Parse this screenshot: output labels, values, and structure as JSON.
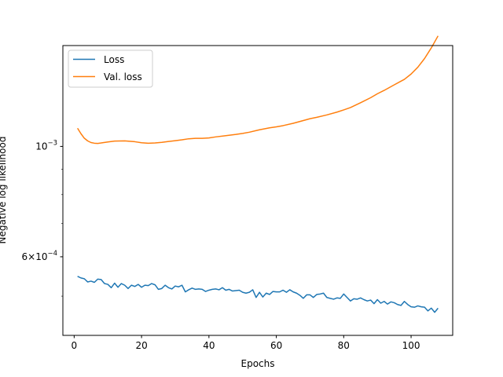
{
  "chart_data": {
    "type": "line",
    "title": "",
    "xlabel": "Epochs",
    "ylabel": "Negative log likelihood",
    "yscale": "log",
    "xlim": [
      -3.35,
      112.35
    ],
    "ylim": [
      0.000417,
      0.001595
    ],
    "xticks": [
      0,
      20,
      40,
      60,
      80,
      100
    ],
    "xtick_labels": [
      "0",
      "20",
      "40",
      "60",
      "80",
      "100"
    ],
    "yticks": [
      0.001,
      0.0006
    ],
    "ytick_labels": [
      {
        "base": "10",
        "exp": "−3"
      },
      {
        "base": "6×10",
        "exp": "−4"
      }
    ],
    "grid": false,
    "legend_position": "top-left",
    "series": [
      {
        "name": "Loss",
        "color": "#1f77b4",
        "x": [
          1,
          2,
          3,
          4,
          5,
          6,
          7,
          8,
          9,
          10,
          11,
          12,
          13,
          14,
          15,
          16,
          17,
          18,
          19,
          20,
          21,
          22,
          23,
          24,
          25,
          26,
          27,
          28,
          29,
          30,
          31,
          32,
          33,
          34,
          35,
          36,
          37,
          38,
          39,
          40,
          41,
          42,
          43,
          44,
          45,
          46,
          47,
          48,
          49,
          50,
          51,
          52,
          53,
          54,
          55,
          56,
          57,
          58,
          59,
          60,
          61,
          62,
          63,
          64,
          65,
          66,
          67,
          68,
          69,
          70,
          71,
          72,
          73,
          74,
          75,
          76,
          77,
          78,
          79,
          80,
          81,
          82,
          83,
          84,
          85,
          86,
          87,
          88,
          89,
          90,
          91,
          92,
          93,
          94,
          95,
          96,
          97,
          98,
          99,
          100,
          101,
          102,
          103,
          104,
          105,
          106,
          107,
          108
        ],
        "values": [
          0.000548,
          0.000544,
          0.000542,
          0.000534,
          0.000536,
          0.000533,
          0.000541,
          0.00054,
          0.00053,
          0.000528,
          0.00052,
          0.000531,
          0.000521,
          0.00053,
          0.000526,
          0.000518,
          0.000526,
          0.000523,
          0.000528,
          0.000521,
          0.000526,
          0.000525,
          0.00053,
          0.000527,
          0.000516,
          0.000518,
          0.000526,
          0.00052,
          0.000517,
          0.000524,
          0.000522,
          0.000526,
          0.00051,
          0.000515,
          0.000519,
          0.000516,
          0.000517,
          0.000516,
          0.000511,
          0.000514,
          0.000516,
          0.000517,
          0.000515,
          0.00052,
          0.000514,
          0.000516,
          0.000512,
          0.000513,
          0.000514,
          0.000509,
          0.000507,
          0.000509,
          0.000515,
          0.000497,
          0.000509,
          0.000498,
          0.000507,
          0.000504,
          0.000511,
          0.00051,
          0.00051,
          0.000514,
          0.000509,
          0.000515,
          0.00051,
          0.000507,
          0.000502,
          0.000495,
          0.000503,
          0.000503,
          0.000497,
          0.000504,
          0.000505,
          0.000507,
          0.000497,
          0.000495,
          0.000493,
          0.000496,
          0.000495,
          0.000505,
          0.000497,
          0.000489,
          0.000494,
          0.000493,
          0.000496,
          0.000492,
          0.000489,
          0.000491,
          0.000483,
          0.000492,
          0.000484,
          0.000488,
          0.000482,
          0.000487,
          0.000485,
          0.000481,
          0.000479,
          0.000488,
          0.000481,
          0.000476,
          0.000475,
          0.000478,
          0.000476,
          0.000475,
          0.000467,
          0.000473,
          0.000464,
          0.000473
        ]
      },
      {
        "name": "Val. loss",
        "color": "#ff7f0e",
        "x": [
          1,
          2,
          3,
          4,
          5,
          6,
          7,
          8,
          10,
          12,
          15,
          18,
          20,
          22,
          24,
          26,
          28,
          30,
          32,
          34,
          36,
          38,
          40,
          42,
          45,
          48,
          50,
          52,
          55,
          58,
          60,
          62,
          65,
          68,
          70,
          72,
          75,
          78,
          80,
          82,
          85,
          88,
          90,
          92,
          95,
          98,
          100,
          102,
          104,
          106,
          108
        ],
        "values": [
          0.001088,
          0.001061,
          0.001039,
          0.001026,
          0.001018,
          0.001015,
          0.001014,
          0.001016,
          0.001021,
          0.001025,
          0.001026,
          0.001022,
          0.001017,
          0.001015,
          0.001016,
          0.001019,
          0.001023,
          0.001027,
          0.001031,
          0.001036,
          0.001038,
          0.001038,
          0.00104,
          0.001045,
          0.001051,
          0.001057,
          0.001062,
          0.001068,
          0.00108,
          0.00109,
          0.001095,
          0.001101,
          0.001113,
          0.001127,
          0.001137,
          0.001144,
          0.001157,
          0.001172,
          0.001184,
          0.001197,
          0.001224,
          0.001253,
          0.001276,
          0.001296,
          0.00133,
          0.001364,
          0.001398,
          0.001443,
          0.001502,
          0.001578,
          0.001668
        ]
      }
    ]
  }
}
